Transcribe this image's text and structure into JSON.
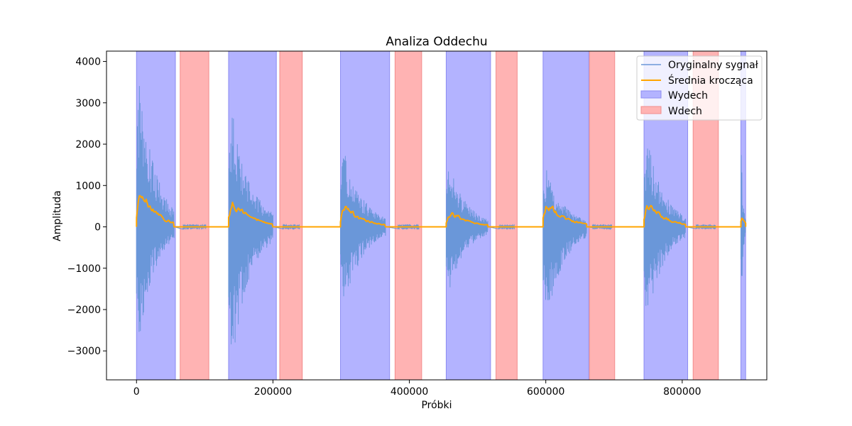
{
  "chart_data": {
    "type": "line",
    "title": "Analiza Oddechu",
    "xlabel": "Próbki",
    "ylabel": "Amplituda",
    "xlim": [
      -44000,
      924000
    ],
    "ylim": [
      -3700,
      4250
    ],
    "xticks": [
      0,
      200000,
      400000,
      600000,
      800000
    ],
    "xtick_labels": [
      "0",
      "200000",
      "400000",
      "600000",
      "800000"
    ],
    "yticks": [
      -3000,
      -2000,
      -1000,
      0,
      1000,
      2000,
      3000,
      4000
    ],
    "ytick_labels": [
      "−3000",
      "−2000",
      "−1000",
      "0",
      "1000",
      "2000",
      "3000",
      "4000"
    ],
    "grid": false,
    "legend_position": "top-right",
    "series_styles": {
      "signal": {
        "name": "Oryginalny sygnał",
        "color": "#6a97d9"
      },
      "rolling": {
        "name": "Średnia krocząca",
        "color": "#ffa500"
      },
      "exhale": {
        "name": "Wydech",
        "color": "#b3b3ff",
        "edge": "#8c8cf2"
      },
      "inhale": {
        "name": "Wdech",
        "color": "#ffb3b3",
        "edge": "#f28c8c"
      }
    },
    "exhale_regions": [
      [
        0,
        57000
      ],
      [
        135000,
        205000
      ],
      [
        299000,
        371000
      ],
      [
        454000,
        519000
      ],
      [
        596000,
        663000
      ],
      [
        744000,
        808000
      ],
      [
        886000,
        893000
      ]
    ],
    "inhale_regions": [
      [
        64000,
        106000
      ],
      [
        210000,
        243000
      ],
      [
        379000,
        418000
      ],
      [
        527000,
        558000
      ],
      [
        664000,
        701000
      ],
      [
        816000,
        853000
      ]
    ],
    "bursts": [
      {
        "start": 0,
        "end": 55000,
        "max": 3850,
        "min": -2800,
        "mean_peak": 1650
      },
      {
        "start": 135000,
        "end": 200000,
        "max": 2950,
        "min": -3350,
        "mean_peak": 1150
      },
      {
        "start": 299000,
        "end": 365000,
        "max": 1900,
        "min": -2000,
        "mean_peak": 900
      },
      {
        "start": 454000,
        "end": 515000,
        "max": 1550,
        "min": -1600,
        "mean_peak": 700
      },
      {
        "start": 596000,
        "end": 660000,
        "max": 1400,
        "min": -2300,
        "mean_peak": 1050
      },
      {
        "start": 744000,
        "end": 805000,
        "max": 2200,
        "min": -2300,
        "mean_peak": 1050
      },
      {
        "start": 886000,
        "end": 893000,
        "max": 1900,
        "min": -2200,
        "mean_peak": 850
      }
    ]
  }
}
